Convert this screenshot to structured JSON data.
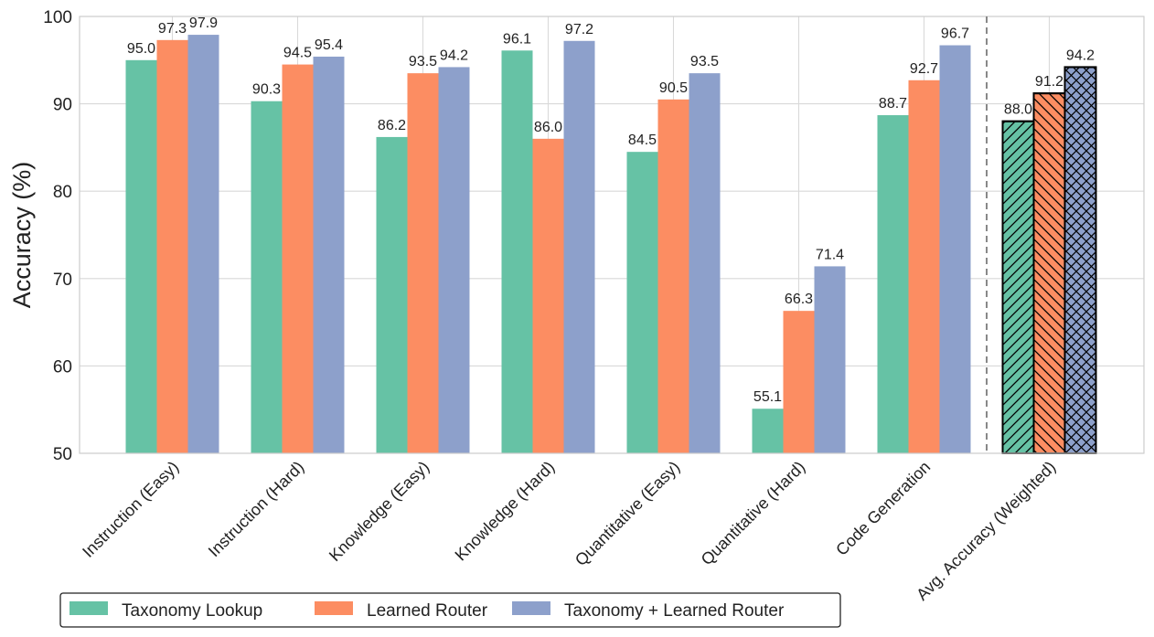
{
  "chart_data": {
    "type": "bar",
    "ylabel": "Accuracy (%)",
    "xlabel": "",
    "ylim": [
      50,
      100
    ],
    "yticks": [
      50,
      60,
      70,
      80,
      90,
      100
    ],
    "grid": true,
    "legend_position": "bottom-left",
    "categories": [
      "Instruction (Easy)",
      "Instruction (Hard)",
      "Knowledge (Easy)",
      "Knowledge (Hard)",
      "Quantitative (Easy)",
      "Quantitative (Hard)",
      "Code Generation",
      "Avg. Accuracy (Weighted)"
    ],
    "highlighted_category": "Avg. Accuracy (Weighted)",
    "series": [
      {
        "name": "Taxonomy Lookup",
        "color": "#66c2a5",
        "hatch": "diagonal",
        "values": [
          95.0,
          90.3,
          86.2,
          96.1,
          84.5,
          55.1,
          88.7,
          88.0
        ],
        "labels": [
          "95.0",
          "90.3",
          "86.2",
          "96.1",
          "84.5",
          "55.1",
          "88.7",
          "88.0"
        ]
      },
      {
        "name": "Learned Router",
        "color": "#fc8d62",
        "hatch": "back-diagonal",
        "values": [
          97.3,
          94.5,
          93.5,
          86.0,
          90.5,
          66.3,
          92.7,
          91.2
        ],
        "labels": [
          "97.3",
          "94.5",
          "93.5",
          "86.0",
          "90.5",
          "66.3",
          "92.7",
          "91.2"
        ]
      },
      {
        "name": "Taxonomy + Learned Router",
        "color": "#8da0cb",
        "hatch": "crosshatch",
        "values": [
          97.9,
          95.4,
          94.2,
          97.2,
          93.5,
          71.4,
          96.7,
          94.2
        ],
        "labels": [
          "97.9",
          "95.4",
          "94.2",
          "97.2",
          "93.5",
          "71.4",
          "96.7",
          "94.2"
        ]
      }
    ]
  }
}
